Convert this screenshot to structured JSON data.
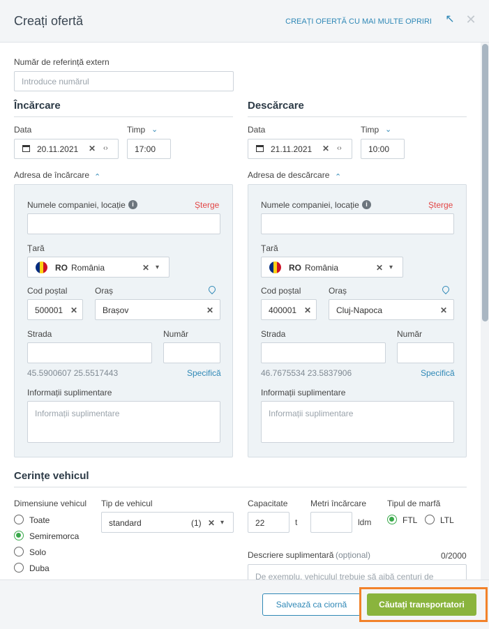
{
  "header": {
    "title": "Creați ofertă",
    "multi_stop_link": "CREAȚI OFERTĂ CU MAI MULTE OPRIRI",
    "collapse_icon": "arrow-up-left-icon",
    "close_icon": "close-icon"
  },
  "ref": {
    "label": "Număr de referință extern",
    "placeholder": "Introduce numărul"
  },
  "loading": {
    "title": "Încărcare",
    "date_label": "Data",
    "date_value": "20.11.2021",
    "time_label": "Timp",
    "time_value": "17:00",
    "address_label": "Adresa de încărcare",
    "company_label": "Numele companiei, locație",
    "delete_label": "Șterge",
    "country_label": "Țară",
    "country_code": "RO",
    "country_name": "România",
    "postal_label": "Cod poștal",
    "postal_value": "500001",
    "city_label": "Oraș",
    "city_value": "Brașov",
    "street_label": "Strada",
    "number_label": "Număr",
    "coords": "45.5900607 25.5517443",
    "specify_label": "Specifică",
    "extra_label": "Informații suplimentare",
    "extra_placeholder": "Informații suplimentare"
  },
  "unloading": {
    "title": "Descărcare",
    "date_label": "Data",
    "date_value": "21.11.2021",
    "time_label": "Timp",
    "time_value": "10:00",
    "address_label": "Adresa de descărcare",
    "company_label": "Numele companiei, locație",
    "delete_label": "Șterge",
    "country_label": "Țară",
    "country_code": "RO",
    "country_name": "România",
    "postal_label": "Cod poștal",
    "postal_value": "400001",
    "city_label": "Oraș",
    "city_value": "Cluj-Napoca",
    "street_label": "Strada",
    "number_label": "Număr",
    "coords": "46.7675534 23.5837906",
    "specify_label": "Specifică",
    "extra_label": "Informații suplimentare",
    "extra_placeholder": "Informații suplimentare"
  },
  "vehicle": {
    "title": "Cerințe vehicul",
    "size_label": "Dimensiune vehicul",
    "sizes": [
      "Toate",
      "Semiremorca",
      "Solo",
      "Duba"
    ],
    "size_selected": "Semiremorca",
    "type_label": "Tip de vehicul",
    "type_value": "standard",
    "type_count": "(1)",
    "capacity_label": "Capacitate",
    "capacity_value": "22",
    "capacity_unit": "t",
    "ldm_label": "Metri încărcare",
    "ldm_unit": "ldm",
    "cargo_label": "Tipul de marfă",
    "cargo_options": [
      "FTL",
      "LTL"
    ],
    "cargo_selected": "FTL",
    "desc_label": "Descriere suplimentară",
    "desc_optional": "(opțional)",
    "desc_counter": "0/2000",
    "desc_placeholder": "De exemplu, vehiculul trebuie să aibă centuri de"
  },
  "footer": {
    "draft_label": "Salvează ca ciornă",
    "search_label": "Căutați transportatori"
  },
  "colors": {
    "accent": "#2f88b6",
    "primary_button": "#8ab43d",
    "highlight": "#f2822a",
    "delete": "#e24646",
    "radio_on": "#39a94a"
  }
}
